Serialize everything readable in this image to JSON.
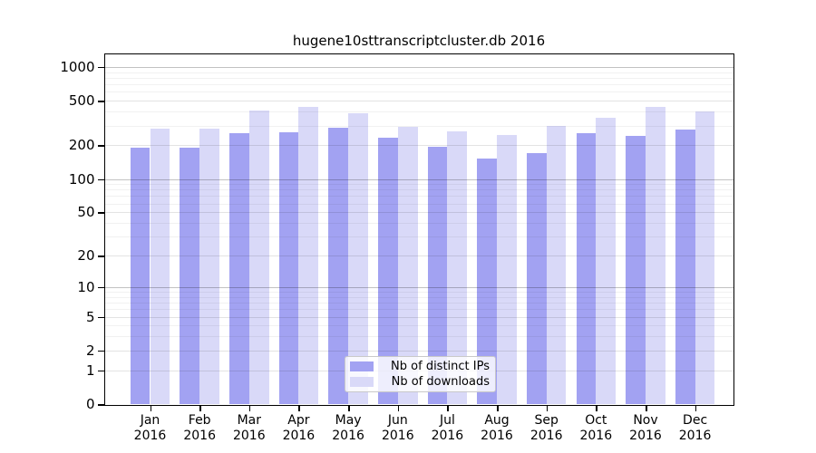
{
  "figure": {
    "title": "hugene10sttranscriptcluster.db 2016"
  },
  "chart_data": {
    "type": "bar",
    "title": "hugene10sttranscriptcluster.db 2016",
    "xlabel": "",
    "ylabel": "",
    "year": "2016",
    "categories": [
      "Jan",
      "Feb",
      "Mar",
      "Apr",
      "May",
      "Jun",
      "Jul",
      "Aug",
      "Sep",
      "Oct",
      "Nov",
      "Dec"
    ],
    "series": [
      {
        "name": "Nb of distinct IPs",
        "color": "#a2a2f2",
        "values": [
          191,
          191,
          257,
          262,
          290,
          232,
          195,
          153,
          171,
          259,
          245,
          279
        ]
      },
      {
        "name": "Nb of downloads",
        "color": "#d9d9f8",
        "values": [
          281,
          281,
          412,
          440,
          386,
          295,
          267,
          247,
          296,
          355,
          444,
          402
        ]
      }
    ],
    "yticks": [
      0,
      1,
      2,
      5,
      10,
      20,
      50,
      100,
      200,
      500,
      1000
    ],
    "ylim": [
      0,
      1370
    ],
    "yscale": "log10(value+1)",
    "grid": true,
    "legend_position": "bottom-center",
    "colors": {
      "frame": "#000000",
      "grid_major": "#c2c2c2",
      "grid_mid": "#e4e4e4",
      "grid_minor": "#f0f0f0",
      "background": "#ffffff"
    }
  }
}
